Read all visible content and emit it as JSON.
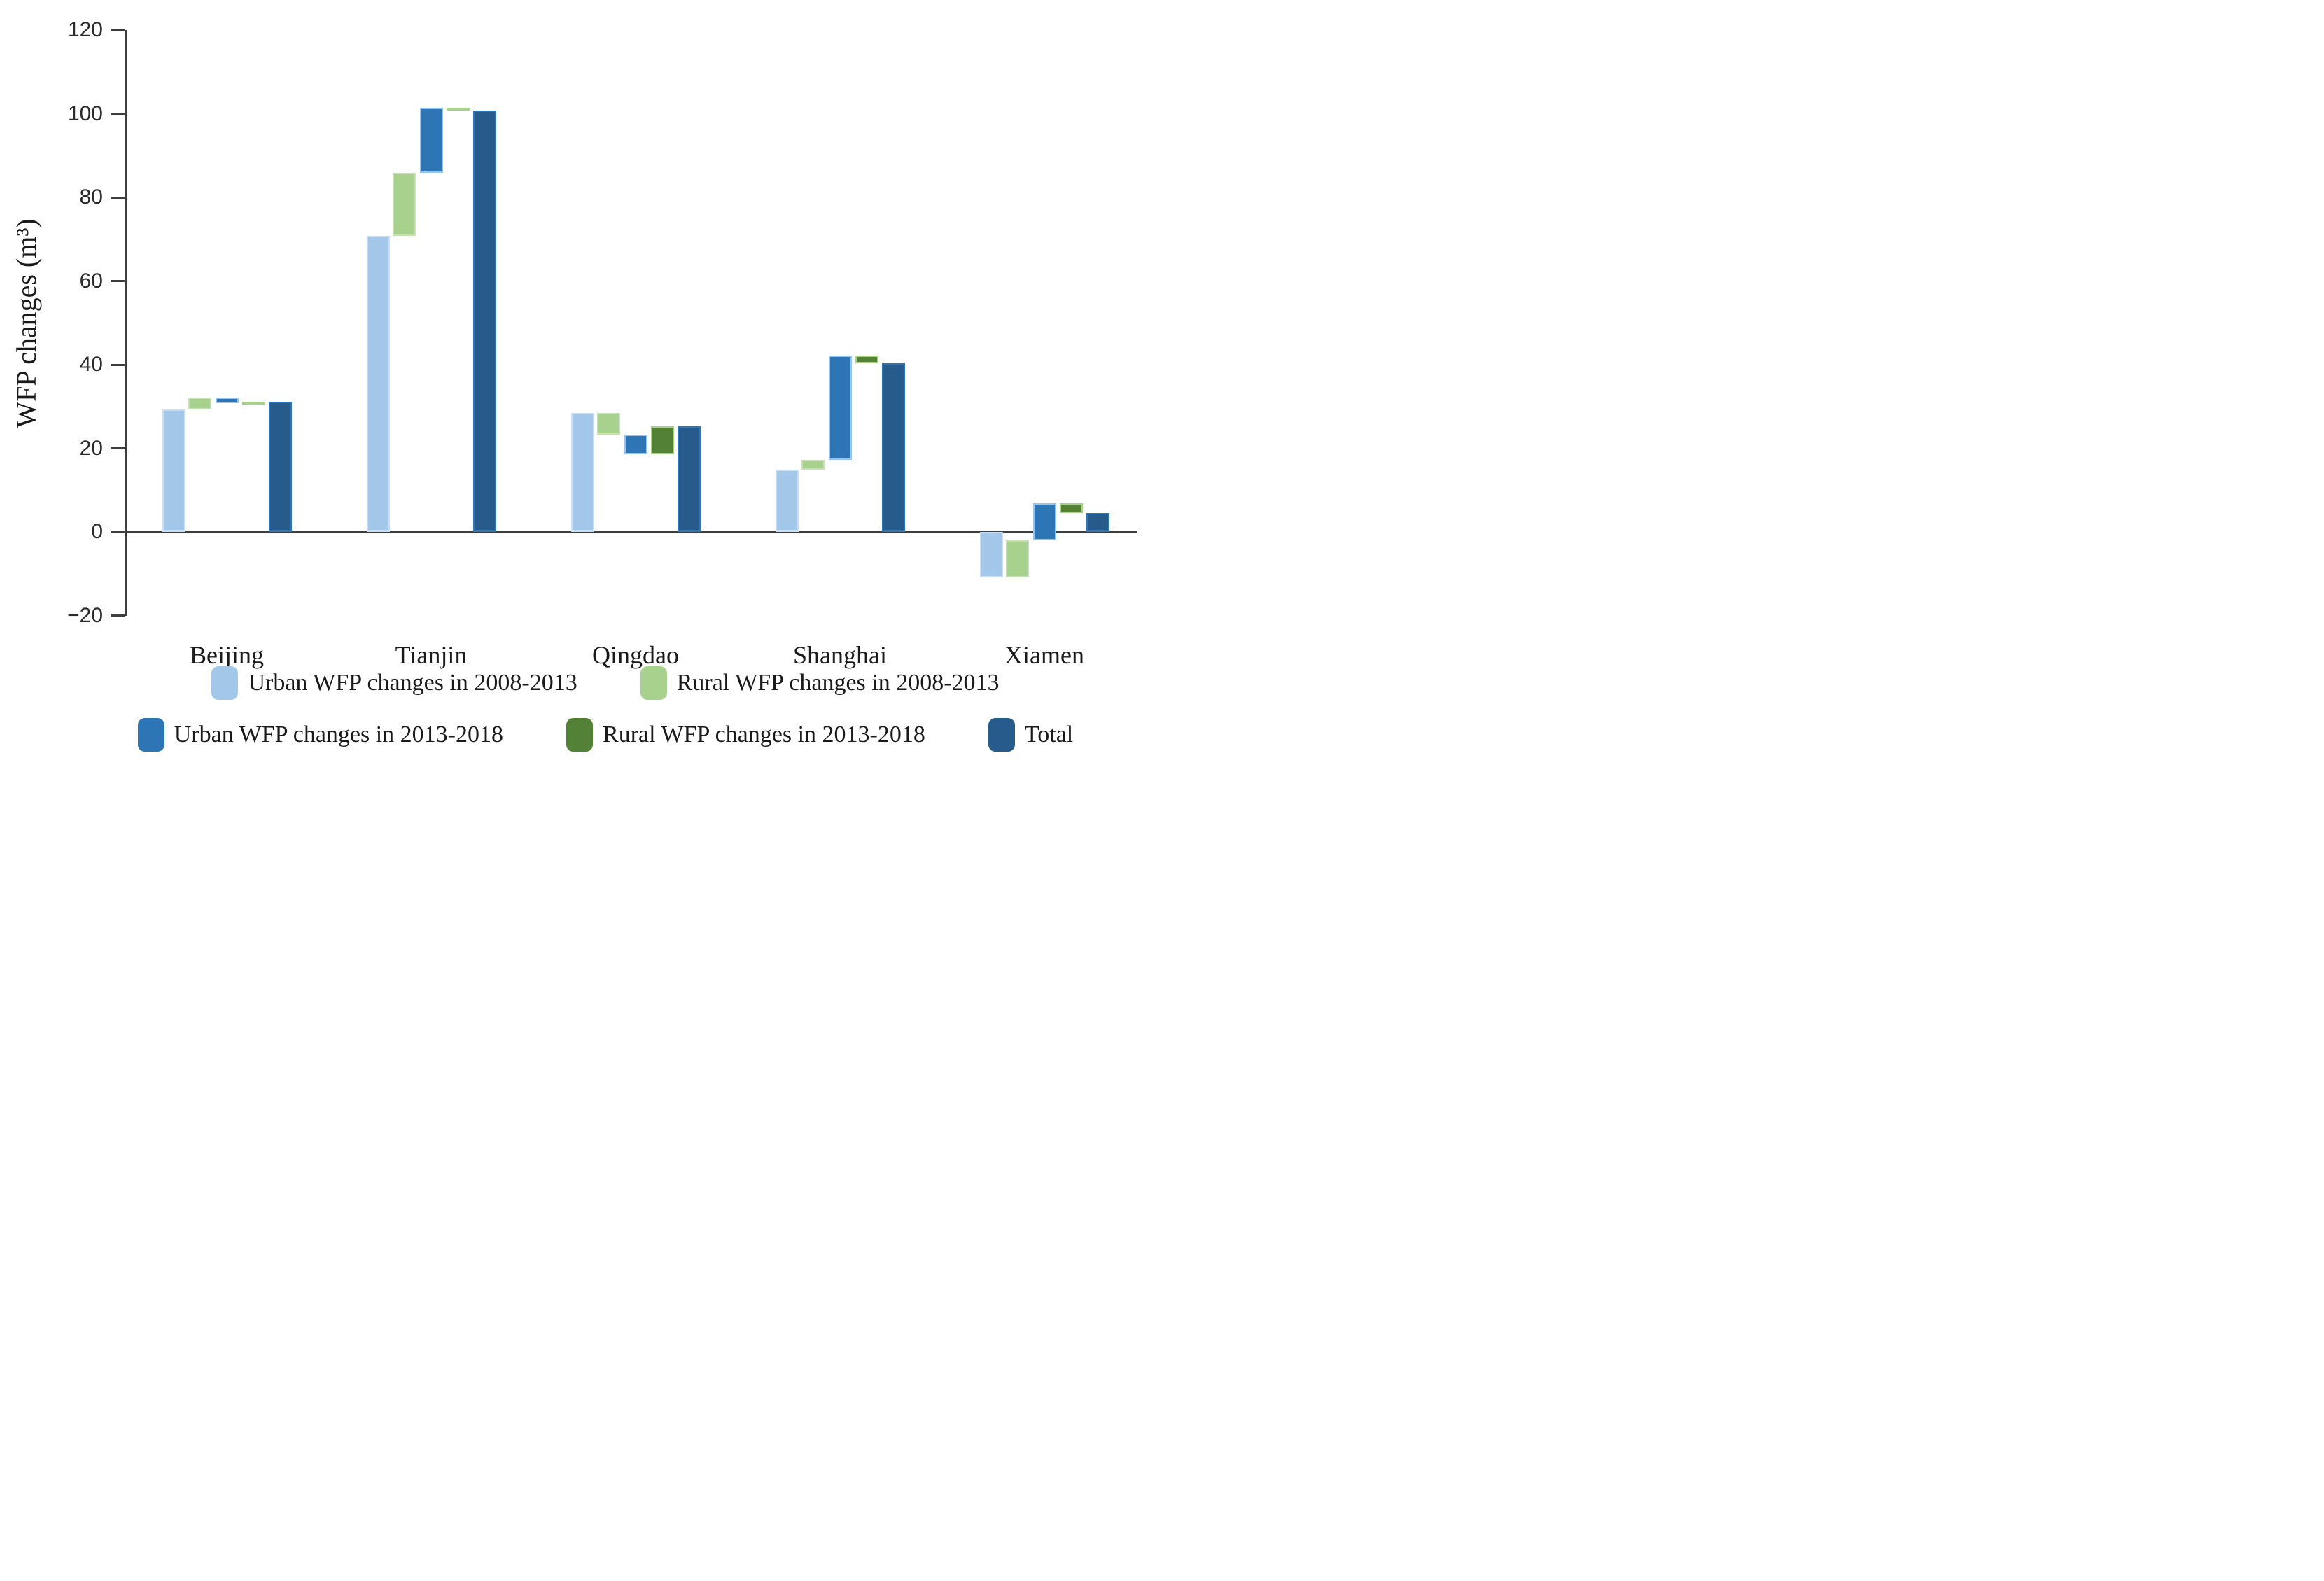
{
  "figure": {
    "background": "#ffffff",
    "axis_color": "#3d3d3d"
  },
  "chart_data": {
    "type": "bar",
    "subtype": "waterfall",
    "title": "",
    "xlabel": "",
    "ylabel": "WFP changes (m³)",
    "ylim": [
      -20,
      120
    ],
    "ytick_interval": 20,
    "yticks": [
      120,
      100,
      80,
      60,
      40,
      20,
      0,
      -20
    ],
    "ytick_labels": [
      "120",
      "100",
      "80",
      "60",
      "40",
      "20",
      "0",
      "−20"
    ],
    "categories": [
      "Beijing",
      "Tianjin",
      "Qingdao",
      "Shanghai",
      "Xiamen"
    ],
    "series": [
      {
        "name": "Urban WFP changes in 2008-2013",
        "role": "change",
        "color": "#A3C7E8",
        "border_color": "#C9DEF2",
        "values": [
          29.3,
          70.8,
          28.5,
          14.9,
          -10.9
        ]
      },
      {
        "name": "Rural WFP changes in 2008-2013",
        "role": "change",
        "color": "#A9D18E",
        "border_color": "#C6E0B4",
        "values": [
          2.8,
          15.1,
          -5.2,
          2.4,
          8.9
        ]
      },
      {
        "name": "Urban WFP changes in 2013-2018",
        "role": "change",
        "color": "#2E75B6",
        "border_color": "#9CC3E5",
        "values": [
          -1.3,
          15.5,
          -4.8,
          24.9,
          8.9
        ]
      },
      {
        "name": "Rural WFP changes in 2013-2018",
        "role": "change",
        "color": "#538135",
        "border_color": "#A9D18E",
        "values": [
          0.3,
          -0.6,
          6.7,
          -1.9,
          -2.3
        ]
      },
      {
        "name": "Total",
        "role": "total",
        "color": "#275B8C",
        "border_color": "#2E75B6",
        "values": [
          31.1,
          100.8,
          25.2,
          40.3,
          4.6
        ]
      }
    ],
    "cumulative_totals": [
      31.1,
      100.8,
      25.2,
      40.3,
      4.6
    ],
    "grid": false,
    "legend_position": "bottom",
    "legend_rows": [
      [
        0,
        1
      ],
      [
        2,
        3,
        4
      ]
    ]
  }
}
